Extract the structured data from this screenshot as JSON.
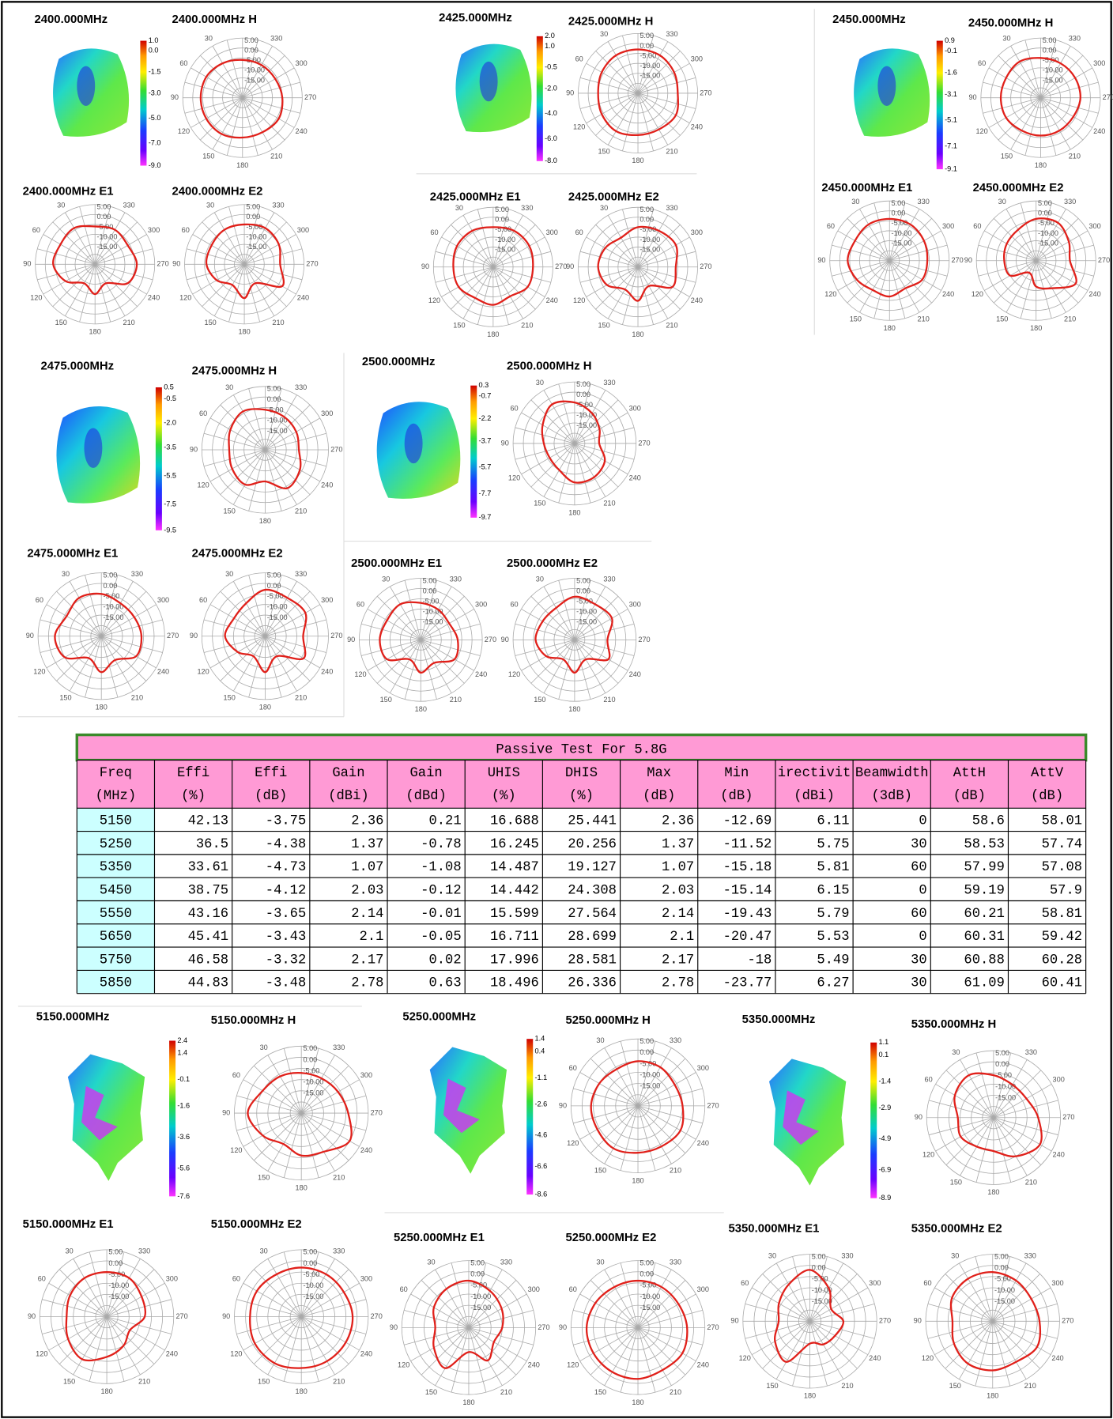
{
  "polar_axis": {
    "angle_labels": [
      30,
      60,
      90,
      120,
      150,
      180,
      210,
      240,
      270,
      300,
      330
    ],
    "radial_labels": [
      "5.00",
      "0.00",
      "-5.00",
      "-10.00",
      "-15.00"
    ]
  },
  "groups": [
    {
      "title": "2400.000MHz",
      "colorbar": [
        "1.0",
        "0.0",
        "-1.5",
        "-3.0",
        "-5.0",
        "-7.0",
        "-9.0"
      ],
      "plots": [
        {
          "title": "2400.000MHz  H",
          "pattern": [
            -6,
            -5,
            -4,
            -4,
            -4,
            -4,
            -5,
            -5,
            -4,
            -5,
            -6,
            -6
          ]
        },
        {
          "title": "2400.000MHz  E1",
          "pattern": [
            -6,
            -4,
            -5,
            -4,
            -8,
            -14,
            -10,
            -14,
            -6,
            -4,
            -6,
            -5
          ]
        },
        {
          "title": "2400.000MHz  E2",
          "pattern": [
            -5,
            -5,
            -6,
            -6,
            -9,
            -13,
            -8,
            -14,
            -3,
            -7,
            -5,
            -4
          ]
        }
      ]
    },
    {
      "title": "2425.000MHz",
      "colorbar": [
        "2.0",
        "1.0",
        "-0.5",
        "-2.0",
        "-4.0",
        "-6.0",
        "-8.0"
      ],
      "plots": [
        {
          "title": "2425.000MHz  H",
          "pattern": [
            -3,
            -3,
            -4,
            -5,
            -4,
            -3,
            -4,
            -4,
            -3,
            -5,
            -4,
            -3
          ]
        },
        {
          "title": "2425.000MHz  E1",
          "pattern": [
            -5,
            -4,
            -4,
            -5,
            -5,
            -7,
            -6,
            -8,
            -5,
            -5,
            -4,
            -4
          ]
        },
        {
          "title": "2425.000MHz  E2",
          "pattern": [
            -5,
            -8,
            -6,
            -5,
            -7,
            -12,
            -8,
            -14,
            -5,
            -6,
            -3,
            -4
          ]
        }
      ]
    },
    {
      "title": "2450.000MHz",
      "colorbar": [
        "0.9",
        "-0.1",
        "-1.6",
        "-3.1",
        "-5.1",
        "-7.1",
        "-9.1"
      ],
      "plots": [
        {
          "title": "2450.000MHz  H",
          "pattern": [
            -5,
            -4,
            -5,
            -5,
            -5,
            -6,
            -6,
            -6,
            -6,
            -5,
            -5,
            -5
          ]
        },
        {
          "title": "2450.000MHz  E1",
          "pattern": [
            -4,
            -4,
            -5,
            -4,
            -6,
            -8,
            -7,
            -9,
            -6,
            -6,
            -5,
            -4
          ]
        },
        {
          "title": "2450.000MHz  E2",
          "pattern": [
            -4,
            -7,
            -8,
            -9,
            -10,
            -18,
            -12,
            -9,
            -2,
            -8,
            -6,
            -3
          ]
        }
      ]
    },
    {
      "title": "2475.000MHz",
      "colorbar": [
        "0.5",
        "-0.5",
        "-2.0",
        "-3.5",
        "-5.5",
        "-7.5",
        "-9.5"
      ],
      "plots": [
        {
          "title": "2475.000MHz  H",
          "pattern": [
            -6,
            -4,
            -6,
            -8,
            -7,
            -6,
            -10,
            -4,
            -6,
            -9,
            -8,
            -7
          ]
        },
        {
          "title": "2475.000MHz  E1",
          "pattern": [
            -5,
            -4,
            -6,
            -3,
            -5,
            -13,
            -8,
            -12,
            -6,
            -6,
            -7,
            -7
          ]
        },
        {
          "title": "2475.000MHz  E2",
          "pattern": [
            -3,
            -7,
            -8,
            -6,
            -10,
            -14,
            -8,
            -14,
            -4,
            -7,
            -3,
            -4
          ]
        }
      ]
    },
    {
      "title": "2500.000MHz",
      "colorbar": [
        "0.3",
        "-0.7",
        "-2.2",
        "-3.7",
        "-5.7",
        "-7.7",
        "-9.7"
      ],
      "plots": [
        {
          "title": "2500.000MHz  H",
          "pattern": [
            -5,
            -3,
            -7,
            -10,
            -11,
            -10,
            -6,
            -6,
            -8,
            -13,
            -11,
            -8
          ]
        },
        {
          "title": "2500.000MHz  E1",
          "pattern": [
            -7,
            -5,
            -6,
            -5,
            -6,
            -14,
            -9,
            -12,
            -6,
            -7,
            -9,
            -8
          ]
        },
        {
          "title": "2500.000MHz  E2",
          "pattern": [
            -4,
            -7,
            -7,
            -6,
            -9,
            -14,
            -9,
            -14,
            -6,
            -9,
            -4,
            -5
          ]
        }
      ]
    },
    {
      "title": "5150.000MHz",
      "colorbar": [
        "2.4",
        "1.4",
        "-0.1",
        "-1.6",
        "-3.6",
        "-5.6",
        "-7.6"
      ],
      "plots": [
        {
          "title": "5150.000MHz  H",
          "pattern": [
            -7,
            -6,
            -5,
            -1,
            -5,
            -9,
            -6,
            -5,
            0,
            -4,
            -6,
            -7
          ]
        },
        {
          "title": "5150.000MHz  E1",
          "pattern": [
            -5,
            -5,
            -6,
            -7,
            -5,
            -3,
            -7,
            -10,
            -13,
            -8,
            -7,
            -5
          ]
        },
        {
          "title": "5150.000MHz  E2",
          "pattern": [
            -3,
            -3,
            -2,
            -2,
            -1,
            -1,
            -2,
            -2,
            -2,
            -2,
            -3,
            -3
          ]
        }
      ]
    },
    {
      "title": "5250.000MHz",
      "colorbar": [
        "1.4",
        "0.4",
        "-1.1",
        "-2.6",
        "-4.6",
        "-6.6",
        "-8.6"
      ],
      "plots": [
        {
          "title": "5250.000MHz  H",
          "pattern": [
            -5,
            -6,
            -5,
            -4,
            -4,
            -3,
            -4,
            -4,
            -3,
            -5,
            -6,
            -5
          ]
        },
        {
          "title": "5250.000MHz  E1",
          "pattern": [
            -4,
            -5,
            -7,
            -10,
            -7,
            -4,
            -14,
            -8,
            -12,
            -10,
            -8,
            -6
          ]
        },
        {
          "title": "5250.000MHz  E2",
          "pattern": [
            -4,
            -4,
            -3,
            -2,
            -2,
            -2,
            -2,
            -3,
            -2,
            -3,
            -4,
            -4
          ]
        }
      ]
    },
    {
      "title": "5350.000MHz",
      "colorbar": [
        "1.1",
        "0.1",
        "-1.4",
        "-2.9",
        "-4.9",
        "-6.9",
        "-8.9"
      ],
      "plots": [
        {
          "title": "5350.000MHz  H",
          "pattern": [
            -6,
            -3,
            -5,
            -9,
            -8,
            -10,
            -10,
            -5,
            -1,
            -5,
            -8,
            -8
          ]
        },
        {
          "title": "5350.000MHz  E1",
          "pattern": [
            -2,
            -6,
            -9,
            -11,
            -7,
            -4,
            -15,
            -13,
            -12,
            -10,
            -14,
            -8
          ]
        },
        {
          "title": "5350.000MHz  E2",
          "pattern": [
            -3,
            -3,
            -4,
            -7,
            -5,
            -3,
            -3,
            -4,
            -2,
            -4,
            -5,
            -4
          ]
        }
      ]
    }
  ],
  "table": {
    "title": "Passive Test For 5.8G",
    "columns": [
      [
        "Freq",
        "(MHz)"
      ],
      [
        "Effi",
        "(%)"
      ],
      [
        "Effi",
        "(dB)"
      ],
      [
        "Gain",
        "(dBi)"
      ],
      [
        "Gain",
        "(dBd)"
      ],
      [
        "UHIS",
        "(%)"
      ],
      [
        "DHIS",
        "(%)"
      ],
      [
        "Max",
        "(dB)"
      ],
      [
        "Min",
        "(dB)"
      ],
      [
        "irectivit",
        "(dBi)"
      ],
      [
        "Beamwidth",
        "(3dB)"
      ],
      [
        "AttH",
        "(dB)"
      ],
      [
        "AttV",
        "(dB)"
      ]
    ],
    "rows": [
      [
        5150,
        42.13,
        -3.75,
        2.36,
        0.21,
        16.688,
        25.441,
        2.36,
        -12.69,
        6.11,
        0,
        58.6,
        58.01
      ],
      [
        5250,
        36.5,
        -4.38,
        1.37,
        -0.78,
        16.245,
        20.256,
        1.37,
        -11.52,
        5.75,
        30,
        58.53,
        57.74
      ],
      [
        5350,
        33.61,
        -4.73,
        1.07,
        -1.08,
        14.487,
        19.127,
        1.07,
        -15.18,
        5.81,
        60,
        57.99,
        57.08
      ],
      [
        5450,
        38.75,
        -4.12,
        2.03,
        -0.12,
        14.442,
        24.308,
        2.03,
        -15.14,
        6.15,
        0,
        59.19,
        57.9
      ],
      [
        5550,
        43.16,
        -3.65,
        2.14,
        -0.01,
        15.599,
        27.564,
        2.14,
        -19.43,
        5.79,
        60,
        60.21,
        58.81
      ],
      [
        5650,
        45.41,
        -3.43,
        2.1,
        -0.05,
        16.711,
        28.699,
        2.1,
        -20.47,
        5.53,
        0,
        60.31,
        59.42
      ],
      [
        5750,
        46.58,
        -3.32,
        2.17,
        0.02,
        17.996,
        28.581,
        2.17,
        -18,
        5.49,
        30,
        60.88,
        60.28
      ],
      [
        5850,
        44.83,
        -3.48,
        2.78,
        0.63,
        18.496,
        26.336,
        2.78,
        -23.77,
        6.27,
        30,
        61.09,
        60.41
      ]
    ]
  }
}
